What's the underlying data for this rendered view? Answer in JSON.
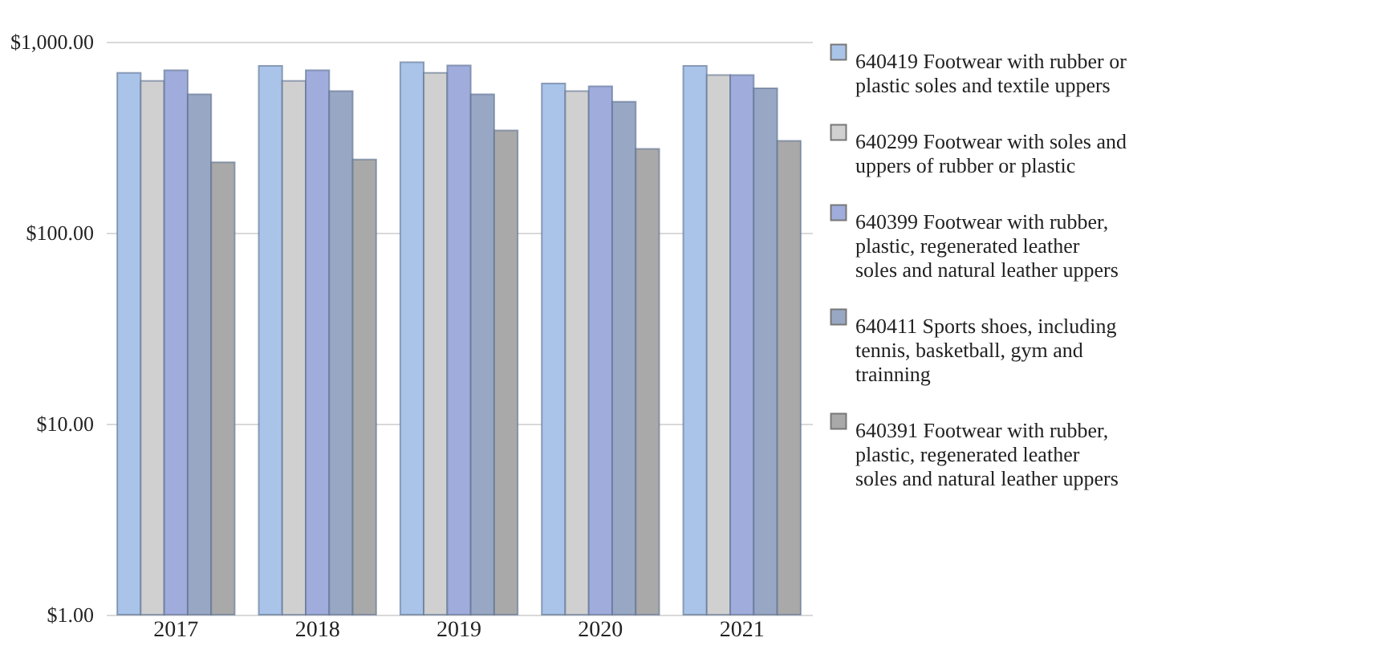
{
  "chart_data": {
    "type": "bar",
    "categories": [
      "2017",
      "2018",
      "2019",
      "2020",
      "2021"
    ],
    "series": [
      {
        "name": "640419 Footwear with rubber or plastic soles and textile uppers",
        "color": "#a9c4e8",
        "values": [
          687,
          748,
          782,
          604,
          748
        ]
      },
      {
        "name": "640299 Footwear with soles and uppers of rubber or plastic",
        "color": "#d0d0d0",
        "values": [
          624,
          624,
          687,
          552,
          670
        ]
      },
      {
        "name": "640399 Footwear with rubber, plastic, regenerated leather soles and natural leather uppers",
        "color": "#a0acdc",
        "values": [
          710,
          710,
          752,
          585,
          670
        ]
      },
      {
        "name": "640411 Sports shoes, including tennis, basketball, gym and trainning",
        "color": "#98a8c4",
        "values": [
          531,
          552,
          531,
          485,
          570
        ]
      },
      {
        "name": "640391 Footwear with rubber, plastic, regenerated leather soles and natural leather uppers",
        "color": "#a9a9a9",
        "values": [
          234,
          242,
          343,
          275,
          303
        ]
      }
    ],
    "log": true,
    "ylim": [
      1,
      1000
    ],
    "yticks": [
      {
        "value": 1,
        "label": "$1.00"
      },
      {
        "value": 10,
        "label": "$10.00"
      },
      {
        "value": 100,
        "label": "$100.00"
      },
      {
        "value": 1000,
        "label": "$1,000.00"
      }
    ],
    "grid": "y",
    "legend": "right"
  }
}
